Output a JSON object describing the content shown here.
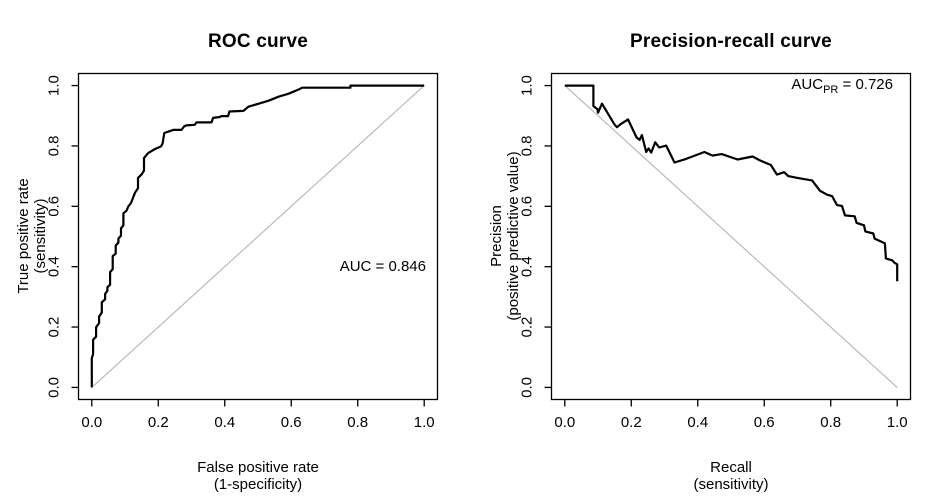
{
  "figure": {
    "background": "#ffffff",
    "text_color": "#000000",
    "axis_color": "#000000",
    "reference_line_color": "#b4b4b4",
    "curve_color": "#000000"
  },
  "chart_data": [
    {
      "id": "roc",
      "type": "line",
      "title": "ROC curve",
      "xlabel": [
        "False positive rate",
        "(1-specificity)"
      ],
      "ylabel": [
        "True positive rate",
        "(sensitivity)"
      ],
      "xlim": [
        0,
        1
      ],
      "ylim": [
        0,
        1
      ],
      "xticks": [
        "0.0",
        "0.2",
        "0.4",
        "0.6",
        "0.8",
        "1.0"
      ],
      "yticks": [
        "0.0",
        "0.2",
        "0.4",
        "0.6",
        "0.8",
        "1.0"
      ],
      "grid": false,
      "legend": "none",
      "annotation": {
        "pre": "AUC",
        "sub": "",
        "post": " = 0.846"
      },
      "reference_line": {
        "from": [
          0,
          0
        ],
        "to": [
          1,
          1
        ]
      },
      "series": [
        {
          "name": "ROC curve",
          "points": [
            [
              0.0,
              0.0
            ],
            [
              0.0,
              0.097
            ],
            [
              0.004,
              0.11
            ],
            [
              0.004,
              0.158
            ],
            [
              0.013,
              0.168
            ],
            [
              0.013,
              0.2
            ],
            [
              0.022,
              0.213
            ],
            [
              0.022,
              0.235
            ],
            [
              0.03,
              0.248
            ],
            [
              0.03,
              0.282
            ],
            [
              0.04,
              0.292
            ],
            [
              0.04,
              0.31
            ],
            [
              0.047,
              0.32
            ],
            [
              0.047,
              0.332
            ],
            [
              0.055,
              0.34
            ],
            [
              0.055,
              0.382
            ],
            [
              0.063,
              0.392
            ],
            [
              0.063,
              0.435
            ],
            [
              0.072,
              0.443
            ],
            [
              0.072,
              0.47
            ],
            [
              0.08,
              0.48
            ],
            [
              0.08,
              0.493
            ],
            [
              0.088,
              0.503
            ],
            [
              0.088,
              0.527
            ],
            [
              0.095,
              0.537
            ],
            [
              0.095,
              0.577
            ],
            [
              0.104,
              0.585
            ],
            [
              0.11,
              0.6
            ],
            [
              0.118,
              0.611
            ],
            [
              0.13,
              0.645
            ],
            [
              0.139,
              0.66
            ],
            [
              0.139,
              0.694
            ],
            [
              0.15,
              0.706
            ],
            [
              0.157,
              0.718
            ],
            [
              0.157,
              0.76
            ],
            [
              0.17,
              0.777
            ],
            [
              0.19,
              0.79
            ],
            [
              0.208,
              0.798
            ],
            [
              0.213,
              0.808
            ],
            [
              0.218,
              0.843
            ],
            [
              0.245,
              0.853
            ],
            [
              0.27,
              0.853
            ],
            [
              0.278,
              0.865
            ],
            [
              0.285,
              0.868
            ],
            [
              0.31,
              0.87
            ],
            [
              0.315,
              0.878
            ],
            [
              0.36,
              0.878
            ],
            [
              0.365,
              0.893
            ],
            [
              0.385,
              0.896
            ],
            [
              0.39,
              0.899
            ],
            [
              0.41,
              0.899
            ],
            [
              0.414,
              0.914
            ],
            [
              0.456,
              0.916
            ],
            [
              0.471,
              0.93
            ],
            [
              0.502,
              0.94
            ],
            [
              0.532,
              0.95
            ],
            [
              0.562,
              0.963
            ],
            [
              0.592,
              0.973
            ],
            [
              0.622,
              0.987
            ],
            [
              0.633,
              0.993
            ],
            [
              0.778,
              0.993
            ],
            [
              0.778,
              1.0
            ],
            [
              1.0,
              1.0
            ]
          ]
        }
      ]
    },
    {
      "id": "precision-recall",
      "type": "line",
      "title": "Precision-recall curve",
      "xlabel": [
        "Recall",
        "(sensitivity)"
      ],
      "ylabel": [
        "Precision",
        "(positive predictive value)"
      ],
      "xlim": [
        0,
        1
      ],
      "ylim": [
        0,
        1
      ],
      "xticks": [
        "0.0",
        "0.2",
        "0.4",
        "0.6",
        "0.8",
        "1.0"
      ],
      "yticks": [
        "0.0",
        "0.2",
        "0.4",
        "0.6",
        "0.8",
        "1.0"
      ],
      "grid": false,
      "legend": "none",
      "annotation": {
        "pre": "AUC",
        "sub": "PR",
        "post": " = 0.726"
      },
      "reference_line": {
        "from": [
          0,
          1
        ],
        "to": [
          1,
          0
        ]
      },
      "series": [
        {
          "name": "Precision-recall curve",
          "points": [
            [
              0.0,
              1.0
            ],
            [
              0.086,
              1.0
            ],
            [
              0.086,
              0.932
            ],
            [
              0.098,
              0.922
            ],
            [
              0.1,
              0.91
            ],
            [
              0.112,
              0.94
            ],
            [
              0.15,
              0.87
            ],
            [
              0.157,
              0.862
            ],
            [
              0.168,
              0.872
            ],
            [
              0.19,
              0.888
            ],
            [
              0.216,
              0.828
            ],
            [
              0.225,
              0.82
            ],
            [
              0.232,
              0.836
            ],
            [
              0.245,
              0.78
            ],
            [
              0.252,
              0.792
            ],
            [
              0.26,
              0.778
            ],
            [
              0.272,
              0.812
            ],
            [
              0.284,
              0.795
            ],
            [
              0.305,
              0.801
            ],
            [
              0.33,
              0.745
            ],
            [
              0.365,
              0.757
            ],
            [
              0.42,
              0.78
            ],
            [
              0.445,
              0.768
            ],
            [
              0.472,
              0.773
            ],
            [
              0.52,
              0.755
            ],
            [
              0.565,
              0.765
            ],
            [
              0.587,
              0.752
            ],
            [
              0.62,
              0.737
            ],
            [
              0.638,
              0.705
            ],
            [
              0.66,
              0.713
            ],
            [
              0.672,
              0.7
            ],
            [
              0.7,
              0.694
            ],
            [
              0.744,
              0.686
            ],
            [
              0.768,
              0.651
            ],
            [
              0.79,
              0.638
            ],
            [
              0.804,
              0.634
            ],
            [
              0.819,
              0.604
            ],
            [
              0.834,
              0.601
            ],
            [
              0.843,
              0.57
            ],
            [
              0.872,
              0.567
            ],
            [
              0.878,
              0.545
            ],
            [
              0.9,
              0.537
            ],
            [
              0.904,
              0.517
            ],
            [
              0.928,
              0.51
            ],
            [
              0.932,
              0.493
            ],
            [
              0.952,
              0.483
            ],
            [
              0.963,
              0.477
            ],
            [
              0.966,
              0.427
            ],
            [
              0.985,
              0.421
            ],
            [
              0.992,
              0.413
            ],
            [
              1.0,
              0.408
            ],
            [
              1.0,
              0.352
            ]
          ]
        }
      ]
    }
  ]
}
